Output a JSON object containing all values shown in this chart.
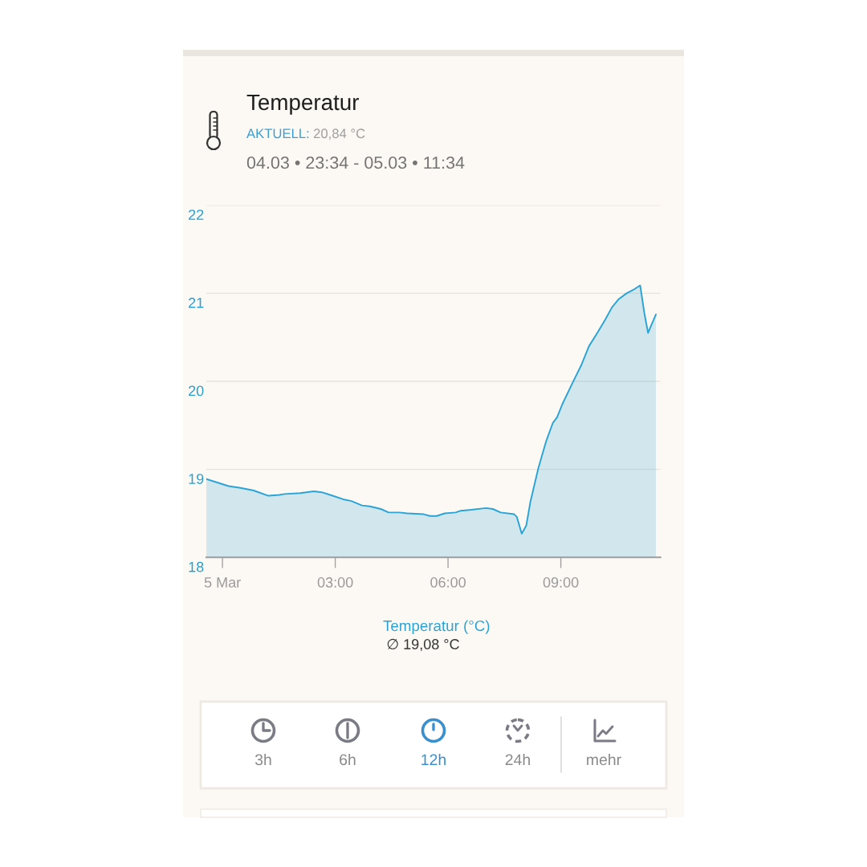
{
  "chart_data": {
    "type": "area",
    "title": "Temperatur",
    "subtitle": "04.03 • 23:34 - 05.03 • 11:34",
    "annotations": [
      "AKTUELL: 20,84 °C",
      "∅ 19,08 °C",
      "3h",
      "6h",
      "12h",
      "24h",
      "mehr"
    ],
    "x": [
      -0.43,
      0.16,
      0.48,
      0.83,
      1.22,
      1.51,
      1.65,
      2.07,
      2.43,
      2.64,
      2.93,
      3.21,
      3.43,
      3.71,
      3.92,
      4.21,
      4.42,
      4.71,
      4.92,
      5.35,
      5.52,
      5.7,
      5.91,
      6.2,
      6.34,
      6.62,
      7.01,
      7.19,
      7.4,
      7.76,
      7.83,
      7.96,
      8.08,
      8.19,
      8.4,
      8.61,
      8.79,
      8.9,
      9.04,
      9.32,
      9.54,
      9.75,
      9.97,
      10.18,
      10.36,
      10.53,
      10.75,
      10.93,
      11.11,
      11.22,
      11.32,
      11.42,
      11.53
    ],
    "series": [
      {
        "name": "Temperatur (°C)",
        "color": "#2aa3d6",
        "values": [
          18.89,
          18.81,
          18.79,
          18.76,
          18.7,
          18.71,
          18.72,
          18.73,
          18.75,
          18.74,
          18.7,
          18.66,
          18.64,
          18.59,
          18.58,
          18.55,
          18.51,
          18.51,
          18.5,
          18.49,
          18.47,
          18.47,
          18.5,
          18.51,
          18.53,
          18.54,
          18.56,
          18.55,
          18.51,
          18.49,
          18.46,
          18.27,
          18.36,
          18.63,
          19.01,
          19.32,
          19.53,
          19.59,
          19.74,
          19.99,
          20.18,
          20.4,
          20.55,
          20.7,
          20.84,
          20.93,
          21.0,
          21.04,
          21.09,
          20.78,
          20.55,
          20.65,
          20.76
        ]
      }
    ],
    "xlim": [
      -0.43,
      11.65
    ],
    "xticks": [
      {
        "value": 0,
        "label": "5 Mar"
      },
      {
        "value": 3,
        "label": "03:00"
      },
      {
        "value": 6,
        "label": "06:00"
      },
      {
        "value": 9,
        "label": "09:00"
      }
    ],
    "ylim": [
      18,
      22
    ],
    "yticks": [
      18,
      19,
      20,
      21,
      22
    ],
    "grid": "y",
    "legend": "bottom"
  }
}
